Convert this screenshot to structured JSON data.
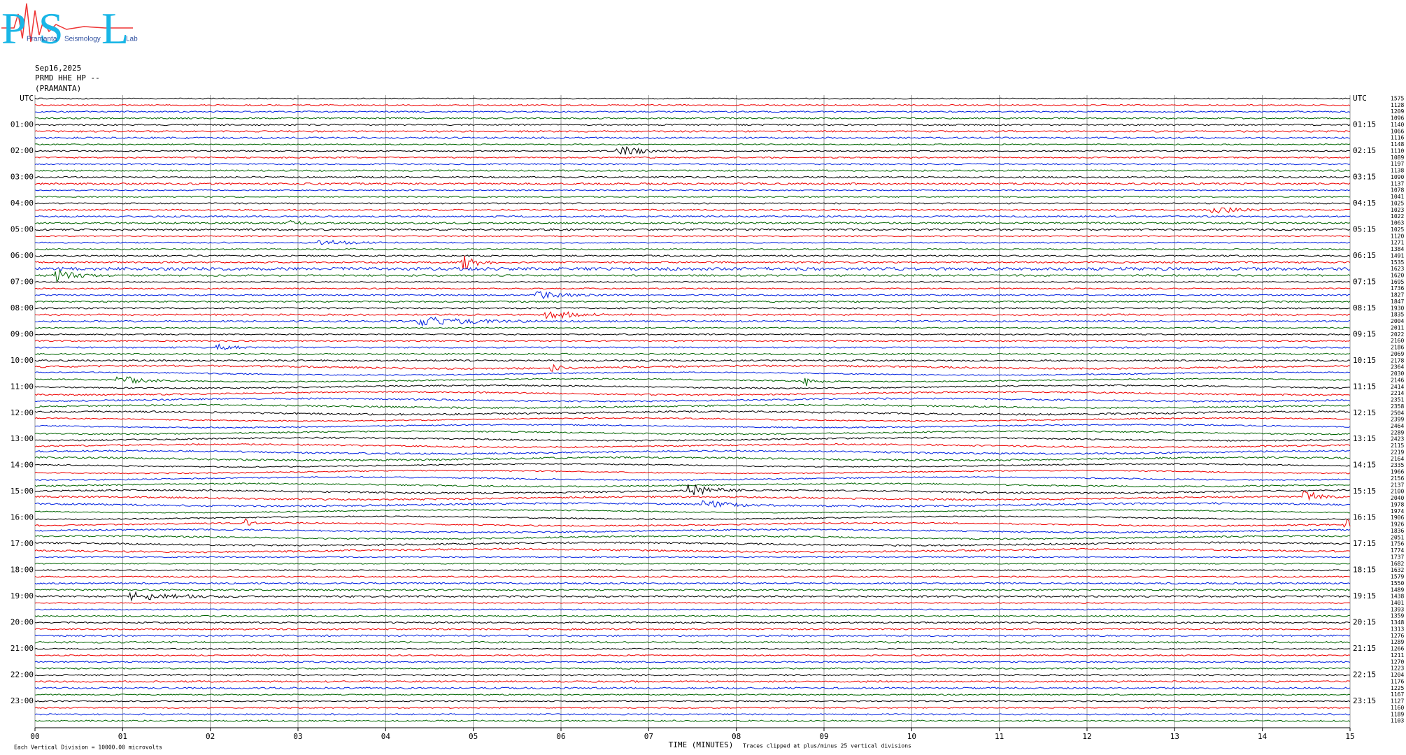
{
  "logo": {
    "letters": [
      "P",
      "S",
      "L"
    ],
    "words": [
      "Pramanta",
      "Seismology",
      "Lab"
    ]
  },
  "header": {
    "date": "Sep16,2025",
    "channel": "PRMD HHE HP --",
    "station": "(PRAMANTA)"
  },
  "left_labels": [
    "UTC",
    "01:00",
    "02:00",
    "03:00",
    "04:00",
    "05:00",
    "06:00",
    "07:00",
    "08:00",
    "09:00",
    "10:00",
    "11:00",
    "12:00",
    "13:00",
    "14:00",
    "15:00",
    "16:00",
    "17:00",
    "18:00",
    "19:00",
    "20:00",
    "21:00",
    "22:00",
    "23:00"
  ],
  "right_labels": [
    "UTC",
    "01:15",
    "02:15",
    "03:15",
    "04:15",
    "05:15",
    "06:15",
    "07:15",
    "08:15",
    "09:15",
    "10:15",
    "11:15",
    "12:15",
    "13:15",
    "14:15",
    "15:15",
    "16:15",
    "17:15",
    "18:15",
    "19:15",
    "20:15",
    "21:15",
    "22:15",
    "23:15"
  ],
  "trace_numbers": [
    1575,
    1128,
    1209,
    1096,
    1140,
    1066,
    1116,
    1148,
    1110,
    1089,
    1197,
    1138,
    1090,
    1137,
    1078,
    1041,
    1025,
    1023,
    1022,
    1063,
    1025,
    1120,
    1271,
    1384,
    1491,
    1535,
    1623,
    1620,
    1695,
    1736,
    1827,
    1847,
    1930,
    1835,
    2004,
    2011,
    2022,
    2160,
    2186,
    2069,
    2178,
    2364,
    2030,
    2146,
    2414,
    2214,
    2351,
    2358,
    2504,
    2399,
    2464,
    2289,
    2423,
    2115,
    2219,
    2164,
    2335,
    1966,
    2156,
    2137,
    2100,
    2040,
    1978,
    1974,
    1906,
    1926,
    1836,
    2051,
    1756,
    1774,
    1737,
    1682,
    1632,
    1579,
    1550,
    1489,
    1438,
    1401,
    1393,
    1359,
    1348,
    1313,
    1276,
    1289,
    1266,
    1211,
    1270,
    1223,
    1204,
    1176,
    1225,
    1167,
    1127,
    1160,
    1189,
    1103
  ],
  "x_labels": [
    "00",
    "01",
    "02",
    "03",
    "04",
    "05",
    "06",
    "07",
    "08",
    "09",
    "10",
    "11",
    "12",
    "13",
    "14",
    "15"
  ],
  "footer": {
    "scale": "Each Vertical Division = 10000.00 microvolts",
    "axis_title": "TIME (MINUTES)",
    "clip_note": "Traces clipped at plus/minus 25 vertical divisions"
  }
}
